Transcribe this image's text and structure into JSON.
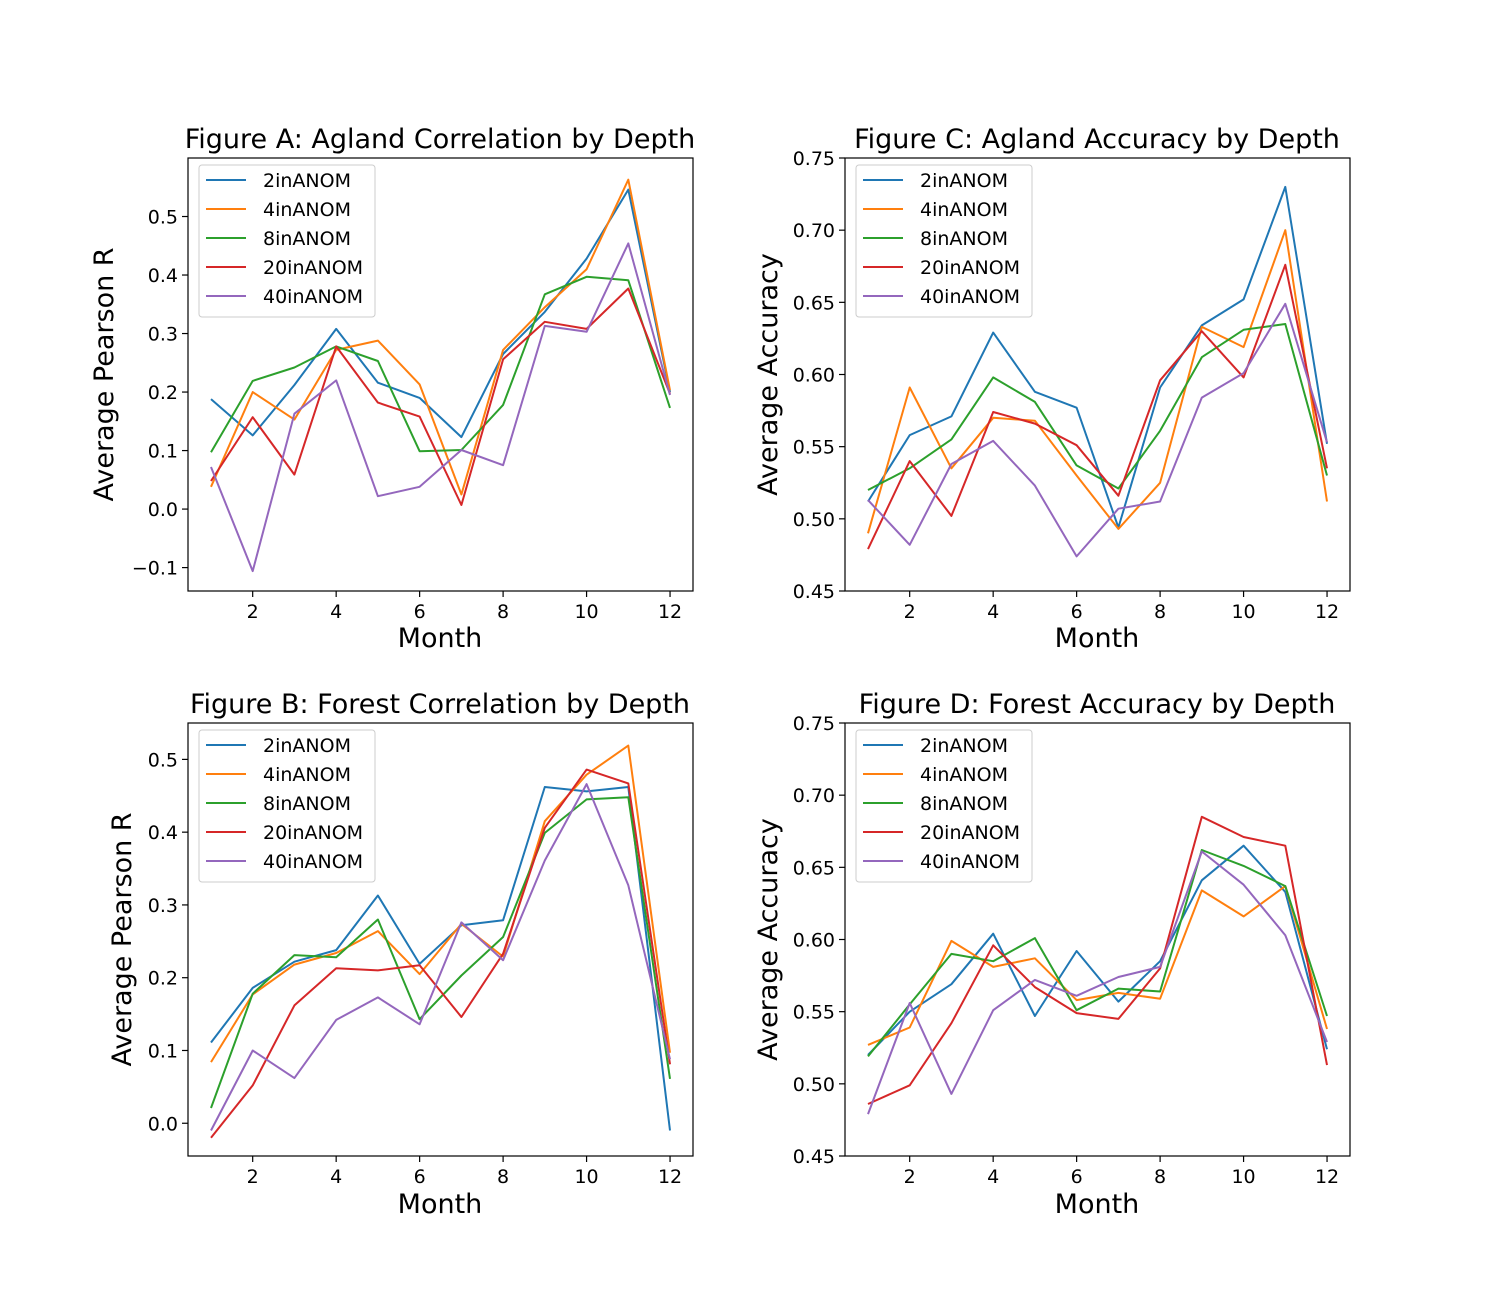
{
  "chart_data": [
    {
      "type": "line",
      "title": "Figure A: Agland Correlation by Depth",
      "xlabel": "Month",
      "ylabel": "Average Pearson R",
      "xlim": [
        0.45,
        12.55
      ],
      "ylim": [
        -0.14,
        0.6
      ],
      "xticks": [
        2,
        4,
        6,
        8,
        10,
        12
      ],
      "yticks": [
        -0.1,
        0.0,
        0.1,
        0.2,
        0.3,
        0.4,
        0.5
      ],
      "ytick_labels": [
        "−0.1",
        "0.0",
        "0.1",
        "0.2",
        "0.3",
        "0.4",
        "0.5"
      ],
      "legend_position": "upper-left",
      "x": [
        1,
        2,
        3,
        4,
        5,
        6,
        7,
        8,
        9,
        10,
        11,
        12
      ],
      "series": [
        {
          "name": "2inANOM",
          "color": "#1f77b4",
          "values": [
            0.188,
            0.126,
            0.212,
            0.308,
            0.216,
            0.19,
            0.123,
            0.265,
            0.337,
            0.428,
            0.546,
            0.2
          ]
        },
        {
          "name": "4inANOM",
          "color": "#ff7f0e",
          "values": [
            0.038,
            0.2,
            0.153,
            0.272,
            0.288,
            0.213,
            0.025,
            0.272,
            0.345,
            0.41,
            0.563,
            0.203
          ]
        },
        {
          "name": "8inANOM",
          "color": "#2ca02c",
          "values": [
            0.097,
            0.219,
            0.242,
            0.278,
            0.253,
            0.099,
            0.101,
            0.178,
            0.367,
            0.397,
            0.391,
            0.173
          ]
        },
        {
          "name": "20inANOM",
          "color": "#d62728",
          "values": [
            0.048,
            0.157,
            0.059,
            0.278,
            0.182,
            0.158,
            0.007,
            0.256,
            0.32,
            0.308,
            0.377,
            0.197
          ]
        },
        {
          "name": "40inANOM",
          "color": "#9467bd",
          "values": [
            0.072,
            -0.106,
            0.163,
            0.22,
            0.022,
            0.038,
            0.101,
            0.075,
            0.313,
            0.303,
            0.454,
            0.195
          ]
        }
      ]
    },
    {
      "type": "line",
      "title": "Figure C: Agland Accuracy by Depth",
      "xlabel": "Month",
      "ylabel": "Average Accuracy",
      "xlim": [
        0.45,
        12.55
      ],
      "ylim": [
        0.45,
        0.75
      ],
      "xticks": [
        2,
        4,
        6,
        8,
        10,
        12
      ],
      "yticks": [
        0.45,
        0.5,
        0.55,
        0.6,
        0.65,
        0.7,
        0.75
      ],
      "ytick_labels": [
        "0.45",
        "0.50",
        "0.55",
        "0.60",
        "0.65",
        "0.70",
        "0.75"
      ],
      "legend_position": "upper-left",
      "x": [
        1,
        2,
        3,
        4,
        5,
        6,
        7,
        8,
        9,
        10,
        11,
        12
      ],
      "series": [
        {
          "name": "2inANOM",
          "color": "#1f77b4",
          "values": [
            0.512,
            0.558,
            0.571,
            0.629,
            0.588,
            0.577,
            0.494,
            0.591,
            0.634,
            0.652,
            0.73,
            0.552
          ]
        },
        {
          "name": "4inANOM",
          "color": "#ff7f0e",
          "values": [
            0.49,
            0.591,
            0.535,
            0.57,
            0.568,
            0.53,
            0.493,
            0.525,
            0.633,
            0.619,
            0.7,
            0.512
          ]
        },
        {
          "name": "8inANOM",
          "color": "#2ca02c",
          "values": [
            0.52,
            0.535,
            0.555,
            0.598,
            0.581,
            0.537,
            0.521,
            0.561,
            0.612,
            0.631,
            0.635,
            0.53
          ]
        },
        {
          "name": "20inANOM",
          "color": "#d62728",
          "values": [
            0.479,
            0.54,
            0.502,
            0.574,
            0.566,
            0.551,
            0.516,
            0.596,
            0.63,
            0.598,
            0.676,
            0.535
          ]
        },
        {
          "name": "40inANOM",
          "color": "#9467bd",
          "values": [
            0.513,
            0.482,
            0.538,
            0.554,
            0.523,
            0.474,
            0.507,
            0.512,
            0.584,
            0.601,
            0.649,
            0.553
          ]
        }
      ]
    },
    {
      "type": "line",
      "title": "Figure B: Forest Correlation by Depth",
      "xlabel": "Month",
      "ylabel": "Average Pearson R",
      "xlim": [
        0.45,
        12.55
      ],
      "ylim": [
        -0.045,
        0.55
      ],
      "xticks": [
        2,
        4,
        6,
        8,
        10,
        12
      ],
      "yticks": [
        0.0,
        0.1,
        0.2,
        0.3,
        0.4,
        0.5
      ],
      "ytick_labels": [
        "0.0",
        "0.1",
        "0.2",
        "0.3",
        "0.4",
        "0.5"
      ],
      "legend_position": "upper-left",
      "x": [
        1,
        2,
        3,
        4,
        5,
        6,
        7,
        8,
        9,
        10,
        11,
        12
      ],
      "series": [
        {
          "name": "2inANOM",
          "color": "#1f77b4",
          "values": [
            0.111,
            0.186,
            0.222,
            0.238,
            0.313,
            0.219,
            0.272,
            0.279,
            0.462,
            0.456,
            0.462,
            -0.01
          ]
        },
        {
          "name": "4inANOM",
          "color": "#ff7f0e",
          "values": [
            0.084,
            0.177,
            0.218,
            0.234,
            0.264,
            0.205,
            0.274,
            0.229,
            0.415,
            0.479,
            0.519,
            0.097
          ]
        },
        {
          "name": "8inANOM",
          "color": "#2ca02c",
          "values": [
            0.021,
            0.178,
            0.231,
            0.228,
            0.28,
            0.143,
            0.203,
            0.256,
            0.399,
            0.445,
            0.448,
            0.061
          ]
        },
        {
          "name": "20inANOM",
          "color": "#d62728",
          "values": [
            -0.02,
            0.052,
            0.162,
            0.213,
            0.21,
            0.217,
            0.146,
            0.233,
            0.406,
            0.486,
            0.467,
            0.081
          ]
        },
        {
          "name": "40inANOM",
          "color": "#9467bd",
          "values": [
            -0.01,
            0.1,
            0.062,
            0.142,
            0.173,
            0.136,
            0.276,
            0.224,
            0.361,
            0.466,
            0.327,
            0.088
          ]
        }
      ]
    },
    {
      "type": "line",
      "title": "Figure D: Forest Accuracy by Depth",
      "xlabel": "Month",
      "ylabel": "Average Accuracy",
      "xlim": [
        0.45,
        12.55
      ],
      "ylim": [
        0.45,
        0.75
      ],
      "xticks": [
        2,
        4,
        6,
        8,
        10,
        12
      ],
      "yticks": [
        0.45,
        0.5,
        0.55,
        0.6,
        0.65,
        0.7,
        0.75
      ],
      "ytick_labels": [
        "0.45",
        "0.50",
        "0.55",
        "0.60",
        "0.65",
        "0.70",
        "0.75"
      ],
      "legend_position": "upper-left",
      "x": [
        1,
        2,
        3,
        4,
        5,
        6,
        7,
        8,
        9,
        10,
        11,
        12
      ],
      "series": [
        {
          "name": "2inANOM",
          "color": "#1f77b4",
          "values": [
            0.52,
            0.55,
            0.569,
            0.604,
            0.547,
            0.592,
            0.557,
            0.585,
            0.641,
            0.665,
            0.633,
            0.524
          ]
        },
        {
          "name": "4inANOM",
          "color": "#ff7f0e",
          "values": [
            0.527,
            0.539,
            0.599,
            0.581,
            0.587,
            0.558,
            0.563,
            0.559,
            0.634,
            0.616,
            0.637,
            0.538
          ]
        },
        {
          "name": "8inANOM",
          "color": "#2ca02c",
          "values": [
            0.519,
            0.555,
            0.59,
            0.585,
            0.601,
            0.551,
            0.566,
            0.564,
            0.662,
            0.651,
            0.637,
            0.547
          ]
        },
        {
          "name": "20inANOM",
          "color": "#d62728",
          "values": [
            0.486,
            0.499,
            0.542,
            0.596,
            0.567,
            0.549,
            0.545,
            0.58,
            0.685,
            0.671,
            0.665,
            0.513
          ]
        },
        {
          "name": "40inANOM",
          "color": "#9467bd",
          "values": [
            0.479,
            0.556,
            0.493,
            0.551,
            0.572,
            0.561,
            0.574,
            0.581,
            0.661,
            0.638,
            0.603,
            0.529
          ]
        }
      ]
    }
  ]
}
